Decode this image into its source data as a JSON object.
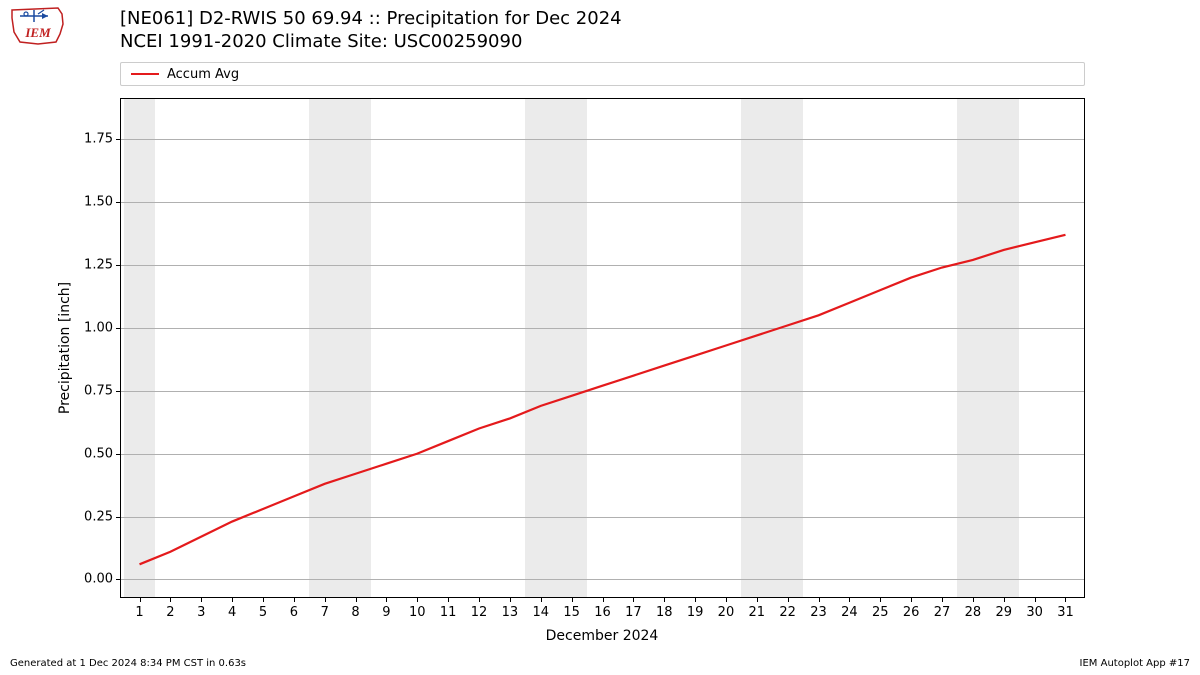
{
  "logo": {
    "text": "IEM"
  },
  "title": {
    "line1": "[NE061] D2-RWIS 50 69.94 :: Precipitation for Dec 2024",
    "line2": "NCEI 1991-2020 Climate Site: USC00259090"
  },
  "legend": {
    "items": [
      {
        "label": "Accum Avg",
        "color": "#e41a1c"
      }
    ]
  },
  "chart": {
    "type": "line",
    "background_color": "#ffffff",
    "shade_color": "#ebebeb",
    "grid_color": "#b0b0b0",
    "axis_color": "#000000",
    "ylabel": "Precipitation [inch]",
    "xlabel": "December 2024",
    "title_fontsize": 18,
    "label_fontsize": 14,
    "tick_fontsize": 13,
    "xlim": [
      0.4,
      31.6
    ],
    "ylim": [
      -0.07,
      1.91
    ],
    "yticks": [
      0.0,
      0.25,
      0.5,
      0.75,
      1.0,
      1.25,
      1.5,
      1.75
    ],
    "yticklabels": [
      "0.00",
      "0.25",
      "0.50",
      "0.75",
      "1.00",
      "1.25",
      "1.50",
      "1.75"
    ],
    "xticks": [
      1,
      2,
      3,
      4,
      5,
      6,
      7,
      8,
      9,
      10,
      11,
      12,
      13,
      14,
      15,
      16,
      17,
      18,
      19,
      20,
      21,
      22,
      23,
      24,
      25,
      26,
      27,
      28,
      29,
      30,
      31
    ],
    "weekend_shade_ranges": [
      [
        0.5,
        1.5
      ],
      [
        6.5,
        8.5
      ],
      [
        13.5,
        15.5
      ],
      [
        20.5,
        22.5
      ],
      [
        27.5,
        29.5
      ]
    ],
    "series": [
      {
        "name": "Accum Avg",
        "color": "#e41a1c",
        "width": 2.2,
        "x": [
          1,
          2,
          3,
          4,
          5,
          6,
          7,
          8,
          9,
          10,
          11,
          12,
          13,
          14,
          15,
          16,
          17,
          18,
          19,
          20,
          21,
          22,
          23,
          24,
          25,
          26,
          27,
          28,
          29,
          30,
          31
        ],
        "y": [
          0.06,
          0.11,
          0.17,
          0.23,
          0.28,
          0.33,
          0.38,
          0.42,
          0.46,
          0.5,
          0.55,
          0.6,
          0.64,
          0.69,
          0.73,
          0.77,
          0.81,
          0.85,
          0.89,
          0.93,
          0.97,
          1.01,
          1.05,
          1.1,
          1.15,
          1.2,
          1.24,
          1.27,
          1.31,
          1.34,
          1.37
        ]
      }
    ]
  },
  "footer": {
    "left": "Generated at 1 Dec 2024 8:34 PM CST in 0.63s",
    "right": "IEM Autoplot App #17"
  }
}
